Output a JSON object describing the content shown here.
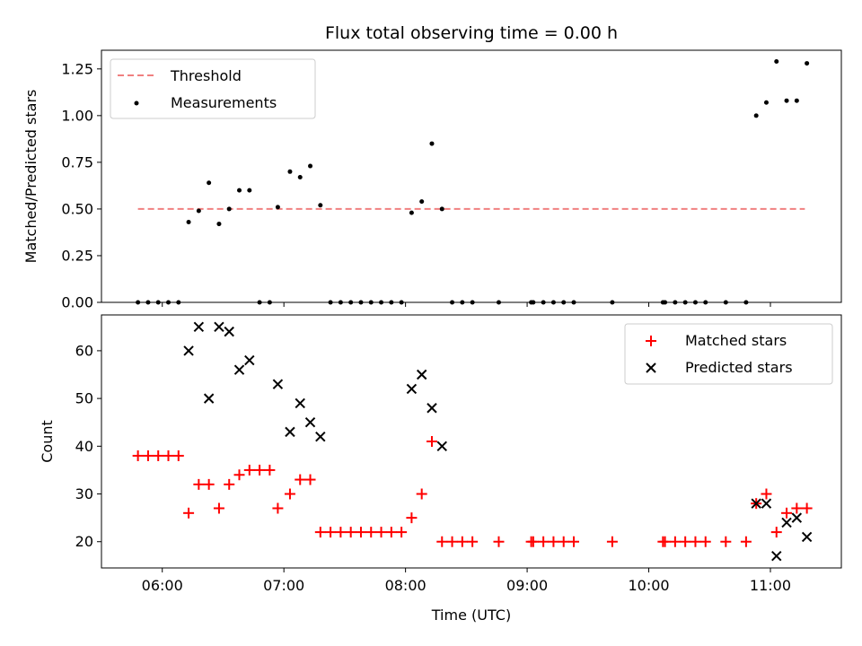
{
  "chart_data": [
    {
      "type": "scatter",
      "title": "Flux total observing time = 0.00 h",
      "ylabel": "Matched/Predicted stars",
      "xlim": [
        "05:30",
        "11:35"
      ],
      "ylim": [
        0,
        1.35
      ],
      "yticks": [
        "0.00",
        "0.25",
        "0.50",
        "0.75",
        "1.00",
        "1.25"
      ],
      "legend_position": "upper left",
      "threshold": {
        "name": "Threshold",
        "value": 0.5,
        "x_range": [
          "05:48",
          "11:17"
        ],
        "color": "#f08080",
        "style": "dashed"
      },
      "series": [
        {
          "name": "Measurements",
          "marker": "dot",
          "color": "#000000",
          "points": [
            [
              "05:48",
              0
            ],
            [
              "05:53",
              0
            ],
            [
              "05:58",
              0
            ],
            [
              "06:03",
              0
            ],
            [
              "06:08",
              0
            ],
            [
              "06:13",
              0.43
            ],
            [
              "06:18",
              0.49
            ],
            [
              "06:23",
              0.64
            ],
            [
              "06:28",
              0.42
            ],
            [
              "06:33",
              0.5
            ],
            [
              "06:38",
              0.6
            ],
            [
              "06:43",
              0.6
            ],
            [
              "06:48",
              0
            ],
            [
              "06:53",
              0
            ],
            [
              "06:57",
              0.51
            ],
            [
              "07:03",
              0.7
            ],
            [
              "07:08",
              0.67
            ],
            [
              "07:13",
              0.73
            ],
            [
              "07:18",
              0.52
            ],
            [
              "07:23",
              0
            ],
            [
              "07:28",
              0
            ],
            [
              "07:33",
              0
            ],
            [
              "07:38",
              0
            ],
            [
              "07:43",
              0
            ],
            [
              "07:48",
              0
            ],
            [
              "07:53",
              0
            ],
            [
              "07:58",
              0
            ],
            [
              "08:03",
              0.48
            ],
            [
              "08:08",
              0.54
            ],
            [
              "08:13",
              0.85
            ],
            [
              "08:18",
              0.5
            ],
            [
              "08:23",
              0
            ],
            [
              "08:28",
              0
            ],
            [
              "08:33",
              0
            ],
            [
              "08:46",
              0
            ],
            [
              "09:02",
              0
            ],
            [
              "09:03",
              0
            ],
            [
              "09:08",
              0
            ],
            [
              "09:13",
              0
            ],
            [
              "09:18",
              0
            ],
            [
              "09:23",
              0
            ],
            [
              "09:42",
              0
            ],
            [
              "10:07",
              0
            ],
            [
              "10:08",
              0
            ],
            [
              "10:13",
              0
            ],
            [
              "10:18",
              0
            ],
            [
              "10:23",
              0
            ],
            [
              "10:28",
              0
            ],
            [
              "10:38",
              0
            ],
            [
              "10:48",
              0
            ],
            [
              "10:53",
              1.0
            ],
            [
              "10:58",
              1.07
            ],
            [
              "11:03",
              1.29
            ],
            [
              "11:08",
              1.08
            ],
            [
              "11:13",
              1.08
            ],
            [
              "11:18",
              1.28
            ]
          ]
        }
      ]
    },
    {
      "type": "scatter",
      "title": "",
      "xlabel": "Time (UTC)",
      "ylabel": "Count",
      "xlim": [
        "05:30",
        "11:35"
      ],
      "ylim": [
        14.5,
        67.5
      ],
      "yticks": [
        "20",
        "30",
        "40",
        "50",
        "60"
      ],
      "xticks": [
        "06:00",
        "07:00",
        "08:00",
        "09:00",
        "10:00",
        "11:00"
      ],
      "legend_position": "upper right",
      "series": [
        {
          "name": "Matched stars",
          "marker": "plus",
          "color": "#ff0000",
          "points": [
            [
              "05:48",
              38
            ],
            [
              "05:53",
              38
            ],
            [
              "05:58",
              38
            ],
            [
              "06:03",
              38
            ],
            [
              "06:08",
              38
            ],
            [
              "06:13",
              26
            ],
            [
              "06:18",
              32
            ],
            [
              "06:23",
              32
            ],
            [
              "06:28",
              27
            ],
            [
              "06:33",
              32
            ],
            [
              "06:38",
              34
            ],
            [
              "06:43",
              35
            ],
            [
              "06:48",
              35
            ],
            [
              "06:53",
              35
            ],
            [
              "06:57",
              27
            ],
            [
              "07:03",
              30
            ],
            [
              "07:08",
              33
            ],
            [
              "07:13",
              33
            ],
            [
              "07:18",
              22
            ],
            [
              "07:23",
              22
            ],
            [
              "07:28",
              22
            ],
            [
              "07:33",
              22
            ],
            [
              "07:38",
              22
            ],
            [
              "07:43",
              22
            ],
            [
              "07:48",
              22
            ],
            [
              "07:53",
              22
            ],
            [
              "07:58",
              22
            ],
            [
              "08:03",
              25
            ],
            [
              "08:08",
              30
            ],
            [
              "08:13",
              41
            ],
            [
              "08:18",
              20
            ],
            [
              "08:23",
              20
            ],
            [
              "08:28",
              20
            ],
            [
              "08:33",
              20
            ],
            [
              "08:46",
              20
            ],
            [
              "09:02",
              20
            ],
            [
              "09:03",
              20
            ],
            [
              "09:08",
              20
            ],
            [
              "09:13",
              20
            ],
            [
              "09:18",
              20
            ],
            [
              "09:23",
              20
            ],
            [
              "09:42",
              20
            ],
            [
              "10:07",
              20
            ],
            [
              "10:08",
              20
            ],
            [
              "10:13",
              20
            ],
            [
              "10:18",
              20
            ],
            [
              "10:23",
              20
            ],
            [
              "10:28",
              20
            ],
            [
              "10:38",
              20
            ],
            [
              "10:48",
              20
            ],
            [
              "10:53",
              28
            ],
            [
              "10:58",
              30
            ],
            [
              "11:03",
              22
            ],
            [
              "11:08",
              26
            ],
            [
              "11:13",
              27
            ],
            [
              "11:18",
              27
            ]
          ]
        },
        {
          "name": "Predicted stars",
          "marker": "x",
          "color": "#000000",
          "points": [
            [
              "06:13",
              60
            ],
            [
              "06:18",
              65
            ],
            [
              "06:23",
              50
            ],
            [
              "06:28",
              65
            ],
            [
              "06:33",
              64
            ],
            [
              "06:38",
              56
            ],
            [
              "06:43",
              58
            ],
            [
              "06:57",
              53
            ],
            [
              "07:03",
              43
            ],
            [
              "07:08",
              49
            ],
            [
              "07:13",
              45
            ],
            [
              "07:18",
              42
            ],
            [
              "08:03",
              52
            ],
            [
              "08:08",
              55
            ],
            [
              "08:13",
              48
            ],
            [
              "08:18",
              40
            ],
            [
              "10:53",
              28
            ],
            [
              "10:58",
              28
            ],
            [
              "11:03",
              17
            ],
            [
              "11:08",
              24
            ],
            [
              "11:13",
              25
            ],
            [
              "11:18",
              21
            ]
          ]
        }
      ]
    }
  ]
}
